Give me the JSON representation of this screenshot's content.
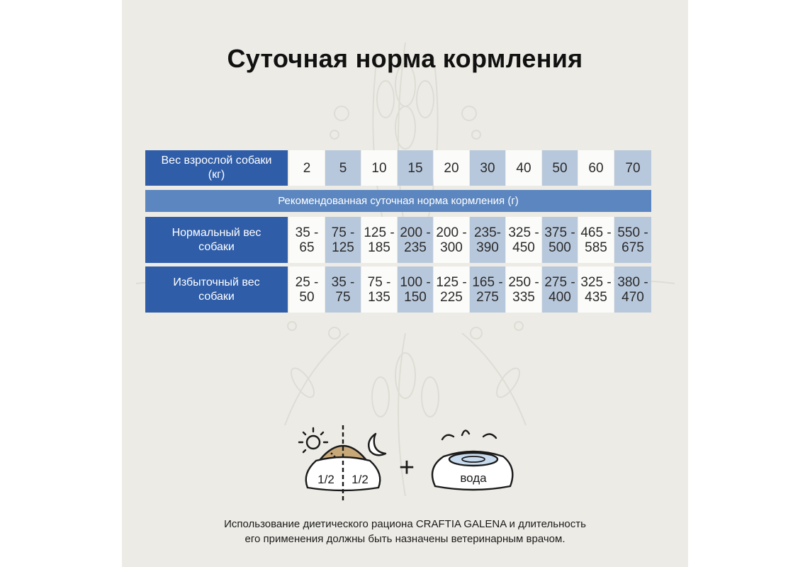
{
  "title": "Суточная норма кормления",
  "table": {
    "weight_header": "Вес взрослой собаки (кг)",
    "weights": [
      "2",
      "5",
      "10",
      "15",
      "20",
      "30",
      "40",
      "50",
      "60",
      "70"
    ],
    "subheader": "Рекомендованная суточная норма кормления (г)",
    "rows": [
      {
        "label": "Нормальный вес собаки",
        "values": [
          "35 - 65",
          "75 - 125",
          "125 - 185",
          "200 - 235",
          "200 - 300",
          "235- 390",
          "325 - 450",
          "375 - 500",
          "465 - 585",
          "550 - 675"
        ]
      },
      {
        "label": "Избыточный вес собаки",
        "values": [
          "25 - 50",
          "35 - 75",
          "75 - 135",
          "100 - 150",
          "125 - 225",
          "165 - 275",
          "250 - 335",
          "275 - 400",
          "325 - 435",
          "380 - 470"
        ]
      }
    ]
  },
  "illustration": {
    "half_left": "1/2",
    "half_right": "1/2",
    "plus": "+",
    "water": "вода",
    "icons": [
      "sun-icon",
      "moon-icon",
      "food-bowl-icon",
      "water-bowl-icon"
    ]
  },
  "footnote": {
    "line1": "Использование диетического рациона CRAFTIA GALENA и длительность",
    "line2": "его применения должны быть назначены ветеринарным врачом."
  },
  "colors": {
    "header_blue": "#2f5da8",
    "subheader_blue": "#5c86bf",
    "cell_blue": "#b8c8dc",
    "cell_white": "#fbfbf9",
    "background": "#ecebe5"
  }
}
